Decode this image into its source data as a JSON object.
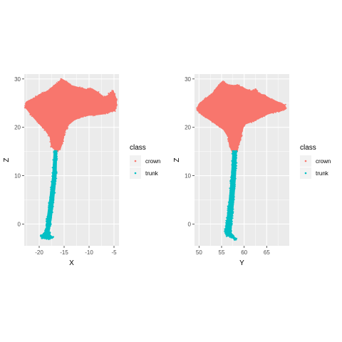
{
  "colors": {
    "crown": "#F8766D",
    "trunk": "#00BFC4",
    "panel": "#EBEBEB",
    "grid": "#FFFFFF"
  },
  "chart_data": [
    {
      "type": "scatter",
      "xlabel": "X",
      "ylabel": "Z",
      "xlim": [
        -23,
        -4
      ],
      "ylim": [
        -4.5,
        31
      ],
      "x_ticks": [
        -20,
        -15,
        -10,
        -5
      ],
      "x_tick_labels": [
        "-20",
        "-15",
        "-10",
        "-5"
      ],
      "y_ticks": [
        0,
        10,
        20,
        30
      ],
      "y_tick_labels": [
        "0",
        "10",
        "20",
        "30"
      ],
      "grid": true,
      "legend": {
        "title": "class",
        "position": "right",
        "entries": [
          "crown",
          "trunk"
        ]
      },
      "series": [
        {
          "name": "crown",
          "outline": [
            [
              -16.5,
              15
            ],
            [
              -17.5,
              16
            ],
            [
              -17.8,
              18
            ],
            [
              -18.8,
              19.5
            ],
            [
              -20.2,
              21
            ],
            [
              -21.5,
              22.5
            ],
            [
              -22.8,
              24.2
            ],
            [
              -22.5,
              25.3
            ],
            [
              -21,
              26
            ],
            [
              -19.5,
              27
            ],
            [
              -18.2,
              27.5
            ],
            [
              -17.5,
              28.2
            ],
            [
              -16.2,
              29.2
            ],
            [
              -15.5,
              30
            ],
            [
              -14.5,
              29.4
            ],
            [
              -13.5,
              28.6
            ],
            [
              -12,
              28.2
            ],
            [
              -10.5,
              27.8
            ],
            [
              -9.5,
              28
            ],
            [
              -8.2,
              27.2
            ],
            [
              -7.2,
              26.2
            ],
            [
              -6.3,
              26.5
            ],
            [
              -5.2,
              27.6
            ],
            [
              -4.6,
              26
            ],
            [
              -4.5,
              24.8
            ],
            [
              -4.8,
              23.5
            ],
            [
              -5.8,
              23.2
            ],
            [
              -7,
              22.8
            ],
            [
              -8.5,
              22.6
            ],
            [
              -10,
              22.5
            ],
            [
              -11.5,
              22.2
            ],
            [
              -13,
              21.5
            ],
            [
              -14.2,
              20.5
            ],
            [
              -15,
              18.8
            ],
            [
              -15.3,
              17
            ],
            [
              -15.8,
              15.5
            ]
          ]
        },
        {
          "name": "trunk",
          "outline": [
            [
              -16.5,
              15
            ],
            [
              -16.6,
              10
            ],
            [
              -17.1,
              5
            ],
            [
              -17.6,
              1
            ],
            [
              -18,
              -1.5
            ],
            [
              -17.8,
              -2.4
            ],
            [
              -17.2,
              -2.8
            ],
            [
              -18.2,
              -3
            ],
            [
              -19.3,
              -2.9
            ],
            [
              -19.6,
              -2.5
            ],
            [
              -19,
              -2
            ],
            [
              -18.6,
              -1
            ],
            [
              -18.4,
              1
            ],
            [
              -17.9,
              5
            ],
            [
              -17.3,
              10
            ],
            [
              -17,
              15
            ]
          ]
        }
      ]
    },
    {
      "type": "scatter",
      "xlabel": "Y",
      "ylabel": "Z",
      "xlim": [
        49,
        70
      ],
      "ylim": [
        -4.5,
        31
      ],
      "x_ticks": [
        50,
        55,
        60,
        65
      ],
      "x_tick_labels": [
        "50",
        "55",
        "60",
        "65"
      ],
      "y_ticks": [
        0,
        10,
        20,
        30
      ],
      "y_tick_labels": [
        "0",
        "10",
        "20",
        "30"
      ],
      "grid": true,
      "legend": {
        "title": "class",
        "position": "right",
        "entries": [
          "crown",
          "trunk"
        ]
      },
      "series": [
        {
          "name": "crown",
          "outline": [
            [
              57.5,
              15
            ],
            [
              56.8,
              16
            ],
            [
              56.5,
              18
            ],
            [
              55.5,
              19.5
            ],
            [
              54,
              20.5
            ],
            [
              52.5,
              21.5
            ],
            [
              50.8,
              22.5
            ],
            [
              49.5,
              23.6
            ],
            [
              50,
              24.8
            ],
            [
              51.3,
              25.8
            ],
            [
              53,
              27
            ],
            [
              54.2,
              28.5
            ],
            [
              55.2,
              29.5
            ],
            [
              56,
              29
            ],
            [
              57,
              28.6
            ],
            [
              58.5,
              28.7
            ],
            [
              60,
              28
            ],
            [
              61.5,
              27.5
            ],
            [
              62.5,
              27.8
            ],
            [
              63.2,
              27
            ],
            [
              64.5,
              26.6
            ],
            [
              66,
              25.8
            ],
            [
              67.5,
              25.2
            ],
            [
              69,
              24.6
            ],
            [
              69.2,
              23.8
            ],
            [
              68,
              23.4
            ],
            [
              66.5,
              23.1
            ],
            [
              65,
              22.7
            ],
            [
              64,
              22.2
            ],
            [
              62.5,
              21.5
            ],
            [
              61.2,
              21
            ],
            [
              60,
              20.6
            ],
            [
              59.5,
              19.2
            ],
            [
              59.2,
              17.5
            ],
            [
              58.6,
              16
            ],
            [
              58.5,
              15
            ]
          ]
        },
        {
          "name": "trunk",
          "outline": [
            [
              57.5,
              15
            ],
            [
              57.2,
              10
            ],
            [
              56.7,
              5
            ],
            [
              56.2,
              1
            ],
            [
              55.8,
              -1.5
            ],
            [
              56.2,
              -2.4
            ],
            [
              57.2,
              -2.7
            ],
            [
              57.9,
              -3.2
            ],
            [
              58.2,
              -3.1
            ],
            [
              57.6,
              -2.6
            ],
            [
              57.2,
              -2.2
            ],
            [
              57,
              -1
            ],
            [
              57.3,
              1
            ],
            [
              57.7,
              5
            ],
            [
              58.1,
              10
            ],
            [
              58.3,
              15
            ]
          ]
        }
      ]
    }
  ]
}
